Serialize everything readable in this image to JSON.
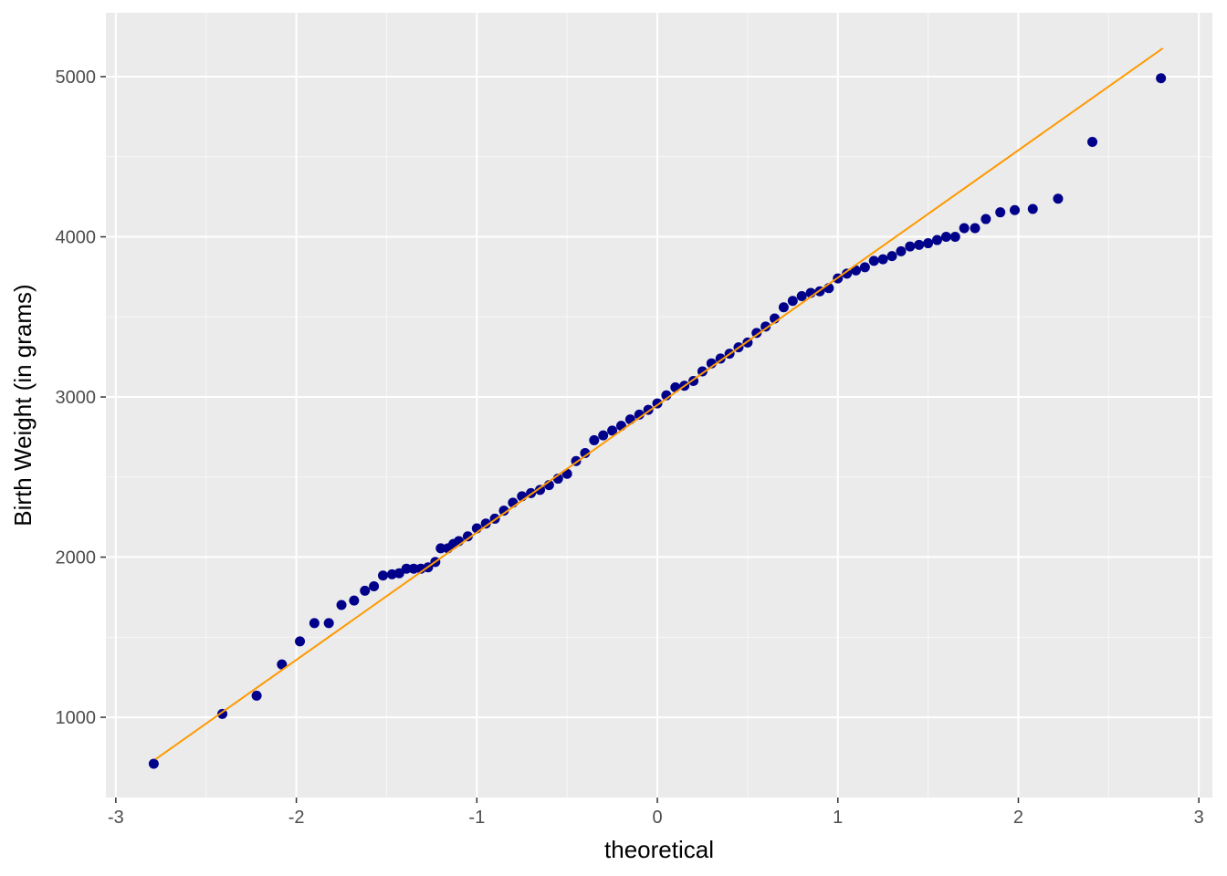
{
  "chart_data": {
    "type": "scatter",
    "x_label": "theoretical",
    "y_label": "Birth Weight (in grams)",
    "point_color": "#00008b",
    "x": [
      -2.79,
      -2.41,
      -2.22,
      -2.08,
      -1.98,
      -1.9,
      -1.82,
      -1.75,
      -1.68,
      -1.62,
      -1.57,
      -1.52,
      -1.47,
      -1.43,
      -1.39,
      -1.35,
      -1.31,
      -1.27,
      -1.23,
      -1.2,
      -1.16,
      -1.13,
      -1.1,
      -1.05,
      -1.0,
      -0.95,
      -0.9,
      -0.85,
      -0.8,
      -0.75,
      -0.7,
      -0.65,
      -0.6,
      -0.55,
      -0.5,
      -0.45,
      -0.4,
      -0.35,
      -0.3,
      -0.25,
      -0.2,
      -0.15,
      -0.1,
      -0.05,
      0,
      0.05,
      0.1,
      0.15,
      0.2,
      0.25,
      0.3,
      0.35,
      0.4,
      0.45,
      0.5,
      0.55,
      0.6,
      0.65,
      0.7,
      0.75,
      0.8,
      0.85,
      0.9,
      0.95,
      1.0,
      1.05,
      1.1,
      1.15,
      1.2,
      1.25,
      1.3,
      1.35,
      1.4,
      1.45,
      1.5,
      1.55,
      1.6,
      1.65,
      1.7,
      1.76,
      1.82,
      1.9,
      1.98,
      2.08,
      2.22,
      2.41,
      2.79
    ],
    "values": [
      710,
      1021,
      1135,
      1330,
      1474,
      1588,
      1588,
      1701,
      1729,
      1790,
      1818,
      1885,
      1893,
      1899,
      1928,
      1928,
      1928,
      1936,
      1970,
      2055,
      2055,
      2082,
      2100,
      2130,
      2180,
      2210,
      2240,
      2290,
      2340,
      2380,
      2400,
      2420,
      2450,
      2490,
      2520,
      2600,
      2650,
      2730,
      2760,
      2790,
      2820,
      2860,
      2890,
      2920,
      2960,
      3010,
      3060,
      3070,
      3100,
      3160,
      3210,
      3240,
      3270,
      3310,
      3340,
      3400,
      3440,
      3490,
      3560,
      3600,
      3630,
      3650,
      3660,
      3680,
      3740,
      3770,
      3790,
      3810,
      3850,
      3860,
      3880,
      3910,
      3940,
      3950,
      3960,
      3980,
      4000,
      4000,
      4054,
      4054,
      4111,
      4153,
      4167,
      4174,
      4238,
      4593,
      4990
    ],
    "reference_line": {
      "color": "#ff9900",
      "x": [
        -2.78,
        2.8
      ],
      "y": [
        738,
        5177
      ]
    },
    "xlim": [
      -3.055,
      3.075
    ],
    "ylim": [
      499,
      5399
    ],
    "xticks": [
      -3,
      -2,
      -1,
      0,
      1,
      2,
      3
    ],
    "yticks": [
      1000,
      2000,
      3000,
      4000,
      5000
    ],
    "x_minor_grid": [
      -2.5,
      -1.5,
      -0.5,
      0.5,
      1.5,
      2.5
    ],
    "y_minor_grid": [
      1500,
      2500,
      3500,
      4500
    ],
    "grid": true
  }
}
